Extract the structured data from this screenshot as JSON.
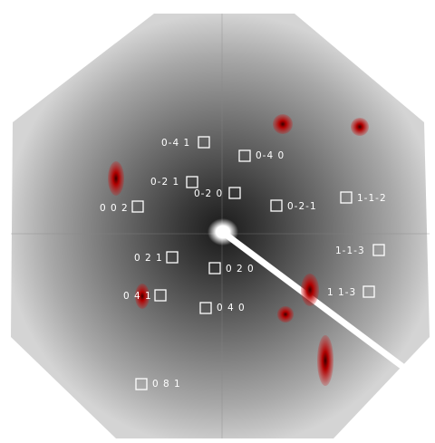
{
  "reflections": [
    {
      "label": "0-4 1"
    },
    {
      "label": "0-4 0"
    },
    {
      "label": "0-2 1"
    },
    {
      "label": "0-2 0"
    },
    {
      "label": "0-2-1"
    },
    {
      "label": "1-1-2"
    },
    {
      "label": "0 0 2"
    },
    {
      "label": "0 2 1"
    },
    {
      "label": "0 2 0"
    },
    {
      "label": "1-1-3"
    },
    {
      "label": "0 4 1"
    },
    {
      "label": "0 4 0"
    },
    {
      "label": "1 1-3"
    },
    {
      "label": "0 8 1"
    }
  ]
}
